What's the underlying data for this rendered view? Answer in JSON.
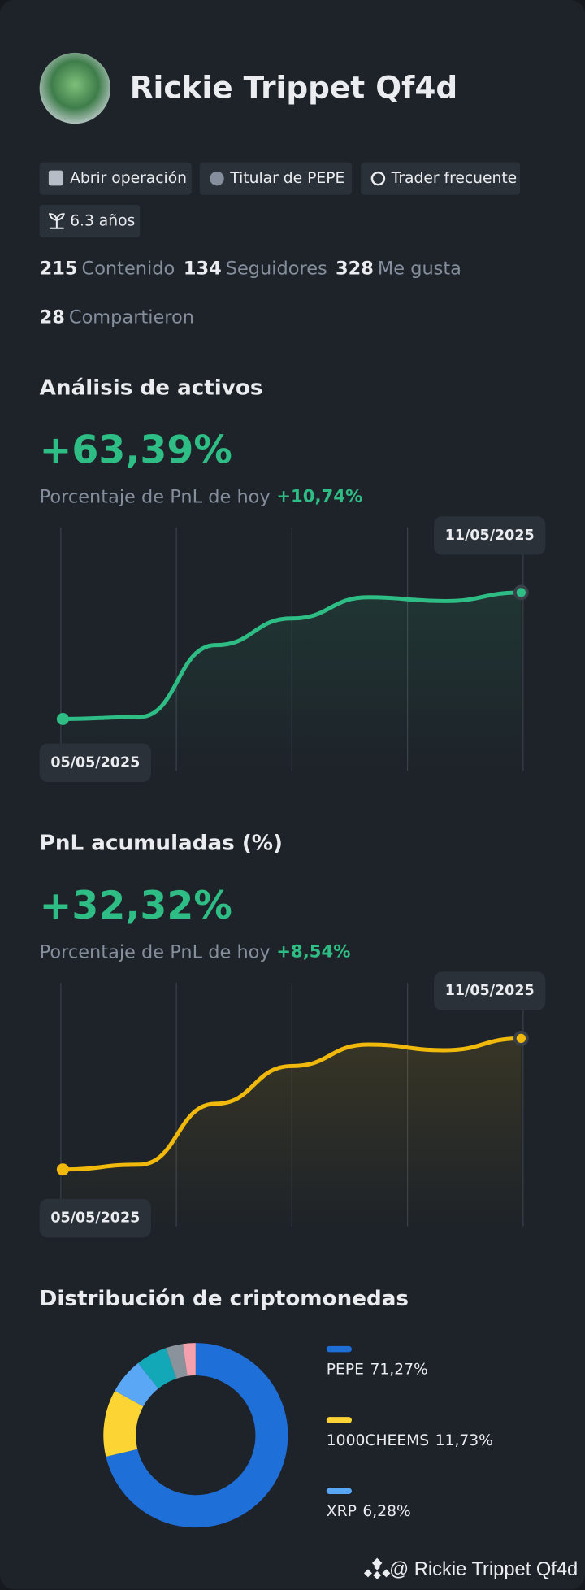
{
  "profile": {
    "name": "Rickie Trippet Qf4d",
    "badges": [
      "Abrir operación",
      "Titular de PEPE",
      "Trader frecuente",
      "6.3 años"
    ],
    "stats": [
      {
        "value": 215,
        "label": "Contenido"
      },
      {
        "value": 134,
        "label": "Seguidores"
      },
      {
        "value": 328,
        "label": "Me gusta"
      },
      {
        "value": 28,
        "label": "Compartieron"
      }
    ]
  },
  "charts": [
    {
      "type": "line",
      "title": "Análisis de activos",
      "headline": "+63,39%",
      "subtitle": "Porcentaje de PnL de hoy",
      "today": "+10,74%",
      "x": [
        "05/05/2025",
        null,
        null,
        null,
        null,
        null,
        "11/05/2025"
      ],
      "series": [
        {
          "color": "#2ebd85",
          "values": [
            0,
            1.0,
            37.0,
            50.4,
            61.0,
            59.1,
            63.39
          ]
        }
      ],
      "ylim": [
        -26,
        96
      ]
    },
    {
      "type": "line",
      "title": "PnL acumuladas (%)",
      "headline": "+32,32%",
      "subtitle": "Porcentaje de PnL de hoy",
      "today": "+8,54%",
      "x": [
        "05/05/2025",
        null,
        null,
        null,
        null,
        null,
        "11/05/2025"
      ],
      "series": [
        {
          "color": "#f0b90b",
          "values": [
            0,
            1.2,
            16.2,
            25.5,
            30.8,
            29.4,
            32.32
          ]
        }
      ],
      "ylim": [
        -14,
        46
      ]
    },
    {
      "type": "pie",
      "title": "Distribución de criptomonedas",
      "categories": [
        "PEPE",
        "1000CHEEMS",
        "XRP",
        null,
        null,
        null
      ],
      "values": [
        71.27,
        11.73,
        6.28,
        5.5,
        3.0,
        2.22
      ],
      "value_labels": [
        "71,27%",
        "11,73%",
        "6,28%",
        null,
        null,
        null
      ],
      "colors": [
        "#1f6fd9",
        "#fcd535",
        "#5aa7f5",
        "#12a8b8",
        "#8a929c",
        "#f4a0ad"
      ]
    }
  ],
  "footer": "@ Rickie Trippet Qf4d"
}
